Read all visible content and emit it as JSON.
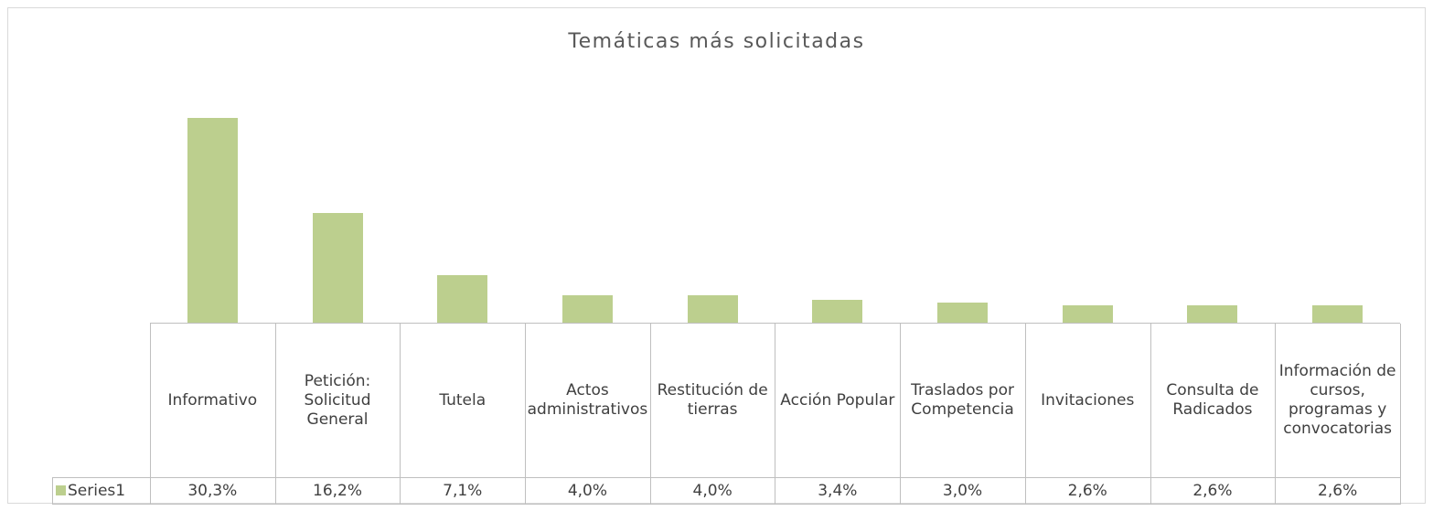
{
  "chart_data": {
    "type": "bar",
    "title": "Temáticas más solicitadas",
    "categories": [
      "Informativo",
      "Petición: Solicitud General",
      "Tutela",
      "Actos administrativos",
      "Restitución de tierras",
      "Acción Popular",
      "Traslados por Competencia",
      "Invitaciones",
      "Consulta de Radicados",
      "Información de cursos, programas y convocatorias"
    ],
    "series": [
      {
        "name": "Series1",
        "color": "#bccf8e",
        "values": [
          30.3,
          16.2,
          7.1,
          4.0,
          4.0,
          3.4,
          3.0,
          2.6,
          2.6,
          2.6
        ],
        "value_labels": [
          "30,3%",
          "16,2%",
          "7,1%",
          "4,0%",
          "4,0%",
          "3,4%",
          "3,0%",
          "2,6%",
          "2,6%",
          "2,6%"
        ]
      }
    ]
  }
}
